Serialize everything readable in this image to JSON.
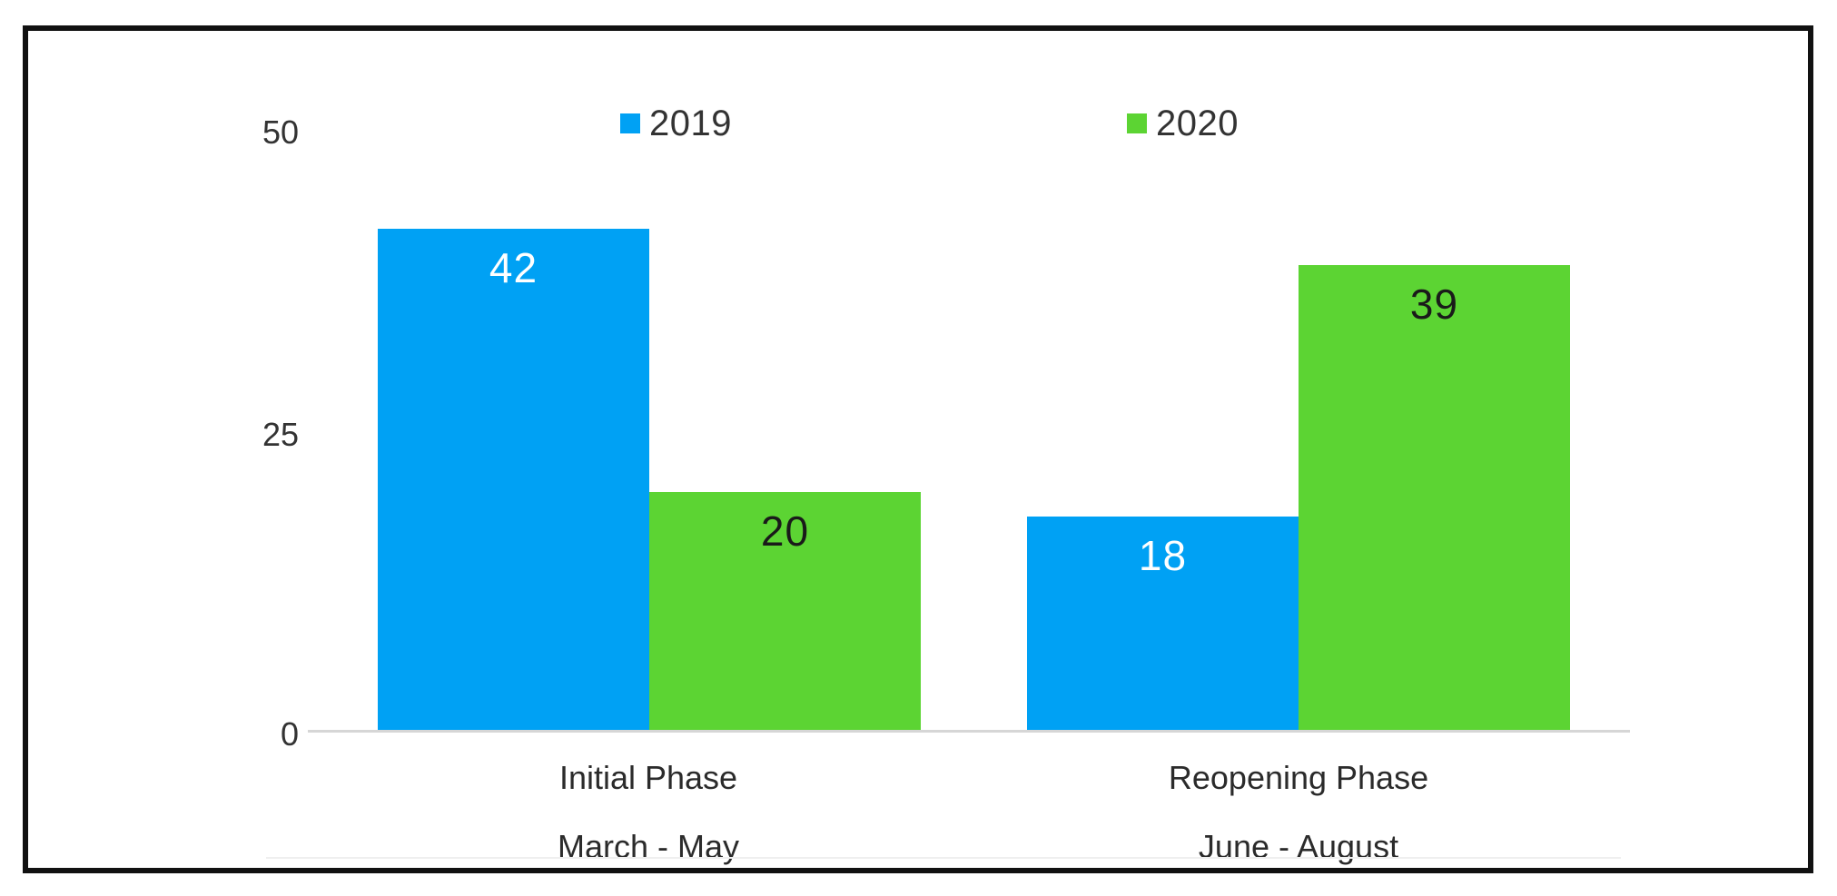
{
  "chart_data": {
    "type": "bar",
    "title": "",
    "xlabel": "",
    "ylabel": "",
    "categories": [
      {
        "line1": "Initial Phase",
        "line2": "March - May"
      },
      {
        "line1": "Reopening Phase",
        "line2": "June - August"
      }
    ],
    "series": [
      {
        "name": "2019",
        "values": [
          42,
          18
        ],
        "color": "#00A1F4",
        "label_color": "#ffffff"
      },
      {
        "name": "2020",
        "values": [
          20,
          39
        ],
        "color": "#5CD433",
        "label_color": "#1a1a1a"
      }
    ],
    "y_ticks": {
      "t0": "0",
      "t1": "25",
      "t2": "50"
    },
    "ylim": [
      0,
      50
    ],
    "legend_position": "top",
    "grid": false
  }
}
